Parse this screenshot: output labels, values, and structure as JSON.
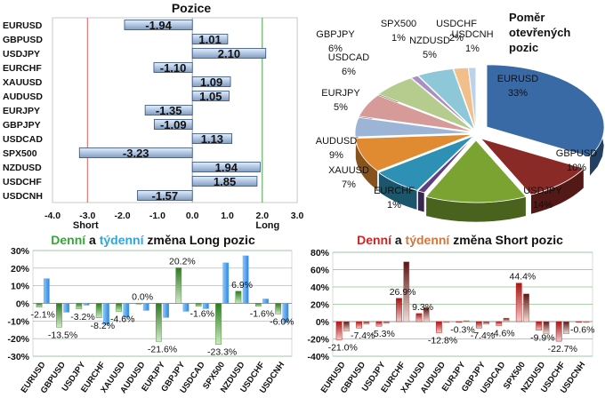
{
  "colors": {
    "pos_bar": "#9cb6d6",
    "neg_bar": "#7f9cc2",
    "bar_edge": "#2f4f7f",
    "short_line": "#d9605c",
    "long_line": "#4aa14a",
    "long_daily": "#4c9e3a",
    "long_weekly": "#5aa8ee",
    "short_daily": "#c81e1e",
    "short_weekly": "#b26e5c",
    "title_denni_long": "#3aa33a",
    "title_tydenni_long": "#2fa6de",
    "title_denni_short": "#d22424",
    "title_tydenni_short": "#d8743a"
  },
  "chart_data": [
    {
      "type": "bar",
      "orientation": "horizontal",
      "title": "Pozice",
      "categories": [
        "EURUSD",
        "GBPUSD",
        "USDJPY",
        "EURCHF",
        "XAUUSD",
        "AUDUSD",
        "EURJPY",
        "GBPJPY",
        "USDCAD",
        "SPX500",
        "NZDUSD",
        "USDCHF",
        "USDCNH"
      ],
      "values": [
        -1.94,
        1.01,
        2.1,
        -1.1,
        1.09,
        1.05,
        -1.35,
        -1.09,
        1.13,
        -3.23,
        1.94,
        1.85,
        -1.57
      ],
      "value_labels": [
        "-1.94",
        "1.01",
        "2.10",
        "-1.10",
        "1.09",
        "1.05",
        "-1.35",
        "-1.09",
        "1.13",
        "-3.23",
        "1.94",
        "1.85",
        "-1.57"
      ],
      "xlim": [
        -4.0,
        3.0
      ],
      "xticks": [
        "-4.0",
        "-3.0",
        "-2.0",
        "-1.0",
        "0.0",
        "1.0",
        "2.0",
        "3.0"
      ],
      "xtick_values": [
        -4,
        -3,
        -2,
        -1,
        0,
        1,
        2,
        3
      ],
      "short_label": "Short",
      "long_label": "Long",
      "short_line": -3,
      "long_line": 2,
      "grid": false
    },
    {
      "type": "pie",
      "title_lines": [
        "Poměr",
        "otevřených",
        "pozic"
      ],
      "labels": [
        "EURUSD",
        "GBPUSD",
        "USDJPY",
        "EURCHF",
        "XAUUSD",
        "AUDUSD",
        "EURJPY",
        "USDCAD",
        "GBPJPY",
        "SPX500",
        "NZDUSD",
        "USDCHF",
        "USDCNH"
      ],
      "values": [
        33,
        10,
        14,
        1,
        7,
        9,
        5,
        6,
        6,
        1,
        5,
        2,
        1
      ],
      "value_labels": [
        "33%",
        "10%",
        "14%",
        "1%",
        "7%",
        "9%",
        "5%",
        "6%",
        "6%",
        "1%",
        "5%",
        "2%",
        "1%"
      ],
      "colors": [
        "#3a6aa6",
        "#8a2a26",
        "#7aa332",
        "#5e3f86",
        "#2e90b4",
        "#e08a32",
        "#9cb4d6",
        "#d69a98",
        "#b6cc8e",
        "#a88ec2",
        "#8ec8d8",
        "#f2be8a",
        "#bcd2ec"
      ]
    },
    {
      "type": "bar",
      "title_parts": [
        "Denní",
        " a ",
        "týdenní",
        " změna Long pozic"
      ],
      "categories": [
        "EURUSD",
        "GBPUSD",
        "USDJPY",
        "EURCHF",
        "XAUUSD",
        "AUDUSD",
        "EURJPY",
        "GBPJPY",
        "USDCAD",
        "SPX500",
        "NZDUSD",
        "USDCHF",
        "USDCNH"
      ],
      "series": [
        {
          "name": "Denní",
          "values": [
            -2.1,
            -13.5,
            -3.2,
            -8.2,
            -4.6,
            0.0,
            -21.6,
            20.2,
            -1.6,
            -23.3,
            6.9,
            -1.6,
            -6.0
          ]
        },
        {
          "name": "Týdenní",
          "values": [
            14.0,
            -5.0,
            -1.0,
            -12.0,
            -8.0,
            -4.0,
            -8.0,
            -4.5,
            -3.0,
            23.0,
            27.0,
            2.5,
            -11.0
          ]
        }
      ],
      "data_labels": [
        "-2.1%",
        "-13.5%",
        "-3.2%",
        "-8.2%",
        "-4.6%",
        "0.0%",
        "-21.6%",
        "20.2%",
        "-1.6%",
        "-23.3%",
        "6.9%",
        "-1.6%",
        "-6.0%"
      ],
      "ylim": [
        -30,
        30
      ],
      "yticks": [
        "30%",
        "20%",
        "10%",
        "0%",
        "-10%",
        "-20%",
        "-30%"
      ],
      "ytick_values": [
        30,
        20,
        10,
        0,
        -10,
        -20,
        -30
      ],
      "grid": true
    },
    {
      "type": "bar",
      "title_parts": [
        "Denní",
        " a ",
        "týdenní",
        " změna Short pozic"
      ],
      "categories": [
        "EURUSD",
        "GBPUSD",
        "USDJPY",
        "EURCHF",
        "XAUUSD",
        "AUDUSD",
        "EURJPY",
        "GBPJPY",
        "USDCAD",
        "SPX500",
        "NZDUSD",
        "USDCHF",
        "USDCNH"
      ],
      "series": [
        {
          "name": "Denní",
          "values": [
            -21.0,
            -7.4,
            -5.3,
            26.9,
            9.3,
            -12.8,
            -0.3,
            -7.4,
            -4.6,
            44.4,
            -9.9,
            -22.7,
            -0.6
          ]
        },
        {
          "name": "Týdenní",
          "values": [
            -11.0,
            -3.0,
            -2.0,
            69.0,
            16.0,
            -1.0,
            1.0,
            -3.0,
            4.0,
            32.0,
            -14.0,
            -14.0,
            -1.0
          ]
        }
      ],
      "data_labels": [
        "-21.0%",
        "-7.4%",
        "-5.3%",
        "26.9%",
        "9.3%",
        "-12.8%",
        "-0.3%",
        "-7.4%",
        "-4.6%",
        "44.4%",
        "-9.9%",
        "-22.7%",
        "-0.6%"
      ],
      "ylim": [
        -40,
        80
      ],
      "yticks": [
        "80%",
        "60%",
        "40%",
        "20%",
        "0%",
        "-20%",
        "-40%"
      ],
      "ytick_values": [
        80,
        60,
        40,
        20,
        0,
        -20,
        -40
      ],
      "grid": true
    }
  ]
}
